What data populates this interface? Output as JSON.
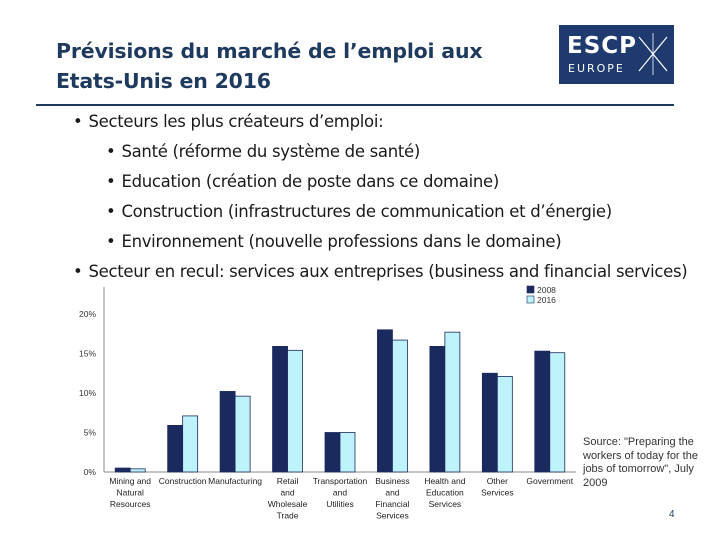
{
  "slide": {
    "title": "Prévisions du marché de l’emploi  aux Etats-Unis en 2016",
    "logo": {
      "line1": "ESCP",
      "line2": "EUROPE"
    },
    "bullets": [
      {
        "level": 1,
        "text": "Secteurs les plus créateurs d’emploi:"
      },
      {
        "level": 2,
        "text": "Santé (réforme du système de santé)"
      },
      {
        "level": 2,
        "text": "Education (création de poste dans ce domaine)"
      },
      {
        "level": 2,
        "text": "Construction (infrastructures de communication et d’énergie)"
      },
      {
        "level": 2,
        "text": "Environnement (nouvelle professions dans le domaine)"
      },
      {
        "level": 1,
        "text": "Secteur en recul: services aux entreprises (business and financial services)"
      }
    ],
    "source": "Source: \"Preparing the workers of today for the jobs of tomorrow\", July 2009",
    "page_number": "4"
  },
  "chart_data": {
    "type": "bar",
    "categories": [
      [
        "Mining and",
        "Natural",
        "Resources"
      ],
      [
        "Construction"
      ],
      [
        "Manufacturing"
      ],
      [
        "Retail",
        "and",
        "Wholesale",
        "Trade"
      ],
      [
        "Transportation",
        "and",
        "Utilities"
      ],
      [
        "Business",
        "and",
        "Financial",
        "Services"
      ],
      [
        "Health and",
        "Education",
        "Services"
      ],
      [
        "Other",
        "Services"
      ],
      [
        "Government"
      ]
    ],
    "series": [
      {
        "name": "2008",
        "color": "#1b2a5e",
        "values": [
          0.5,
          5.9,
          10.2,
          15.9,
          5.0,
          18.0,
          15.9,
          12.5,
          15.3
        ]
      },
      {
        "name": "2016",
        "color": "#bff3fb",
        "values": [
          0.4,
          7.1,
          9.6,
          15.4,
          5.0,
          16.7,
          17.7,
          12.1,
          15.1
        ]
      }
    ],
    "yticks": [
      "0%",
      "5%",
      "10%",
      "15%",
      "20%"
    ],
    "ylim": [
      0,
      24
    ],
    "legend": "top-right"
  },
  "colors": {
    "title": "#1f3a5f",
    "logo_bg": "#1f3a6e"
  }
}
